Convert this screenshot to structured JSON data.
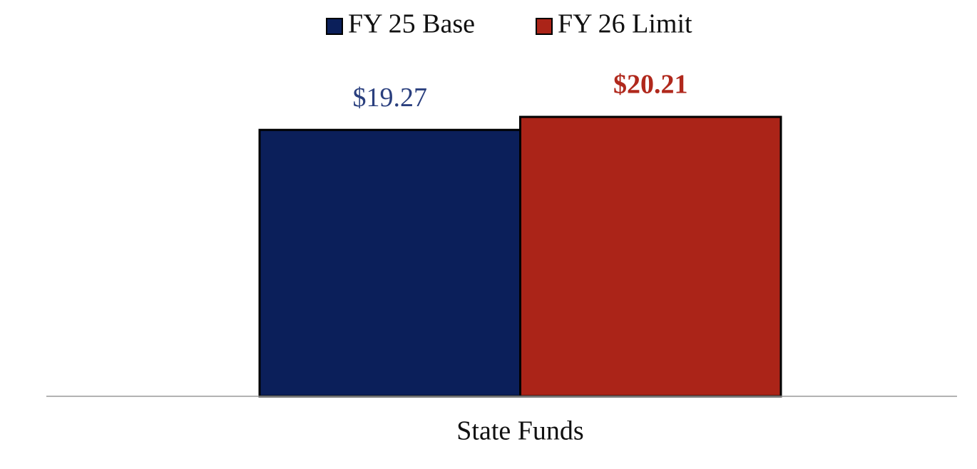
{
  "chart_data": {
    "type": "bar",
    "categories": [
      "State Funds"
    ],
    "series": [
      {
        "name": "FY 25 Base",
        "color": "#0b1f5a",
        "values": [
          19.27
        ],
        "value_labels": [
          "$19.27"
        ],
        "label_color": "#2a3f7e",
        "label_bold": false
      },
      {
        "name": "FY 26 Limit",
        "color": "#ab2418",
        "values": [
          20.21
        ],
        "value_labels": [
          "$20.21"
        ],
        "label_color": "#b0281c",
        "label_bold": true
      }
    ],
    "legend": "top"
  }
}
